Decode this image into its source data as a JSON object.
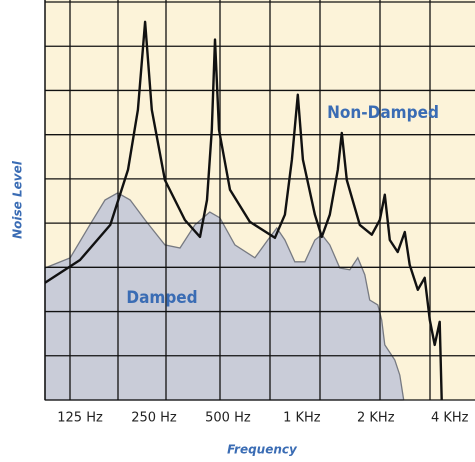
{
  "chart_data": {
    "type": "line",
    "xlabel": "Frequency",
    "ylabel": "Noise Level",
    "xscale": "log",
    "xlim": [
      90,
      5070
    ],
    "ylim": [
      0,
      9
    ],
    "xticks": [
      {
        "value": 125,
        "label": "125 Hz"
      },
      {
        "value": 250,
        "label": "250 Hz"
      },
      {
        "value": 500,
        "label": "500 Hz"
      },
      {
        "value": 1000,
        "label": "1 KHz"
      },
      {
        "value": 2000,
        "label": "2 KHz"
      },
      {
        "value": 4000,
        "label": "4 KHz"
      }
    ],
    "grid": true,
    "background": "#fcf3d9",
    "annotations": [
      {
        "text": "Non-Damped",
        "series": 0
      },
      {
        "text": "Damped",
        "series": 1
      }
    ],
    "series": [
      {
        "name": "Non-Damped",
        "style": "line",
        "color": "#111111",
        "x": [
          90,
          125,
          166,
          196,
          215,
          230,
          245,
          277,
          334,
          385,
          411,
          430,
          443,
          460,
          510,
          614,
          777,
          853,
          911,
          963,
          1010,
          1130,
          1206,
          1300,
          1401,
          1455,
          1524,
          1722,
          1926,
          2076,
          2176,
          2280,
          2457,
          2625,
          2750,
          2965,
          3165,
          3318,
          3475,
          3643,
          3711
        ],
        "values": [
          2.64,
          3.15,
          3.94,
          5.18,
          6.53,
          8.51,
          6.53,
          4.95,
          4.05,
          3.67,
          4.5,
          6.08,
          8.11,
          6.08,
          4.73,
          4.01,
          3.65,
          4.17,
          5.41,
          6.87,
          5.41,
          4.17,
          3.67,
          4.17,
          5.18,
          6.01,
          4.95,
          3.94,
          3.72,
          4.05,
          4.62,
          3.6,
          3.33,
          3.78,
          3.04,
          2.48,
          2.75,
          1.8,
          1.24,
          1.76,
          0
        ]
      },
      {
        "name": "Damped",
        "style": "area",
        "color": "#c9ccd8",
        "x": [
          90,
          114,
          137,
          158,
          178,
          200,
          230,
          277,
          319,
          367,
          422,
          464,
          534,
          644,
          727,
          791,
          853,
          936,
          1029,
          1130,
          1206,
          1300,
          1428,
          1568,
          1690,
          1804,
          1890,
          2038,
          2115,
          2176,
          2390,
          2504,
          2599
        ],
        "values": [
          2.97,
          3.2,
          3.94,
          4.5,
          4.66,
          4.5,
          4.05,
          3.49,
          3.42,
          3.94,
          4.23,
          4.1,
          3.49,
          3.2,
          3.6,
          3.87,
          3.6,
          3.11,
          3.11,
          3.6,
          3.72,
          3.49,
          2.97,
          2.93,
          3.2,
          2.82,
          2.25,
          2.14,
          1.8,
          1.24,
          0.9,
          0.56,
          0
        ]
      }
    ]
  }
}
